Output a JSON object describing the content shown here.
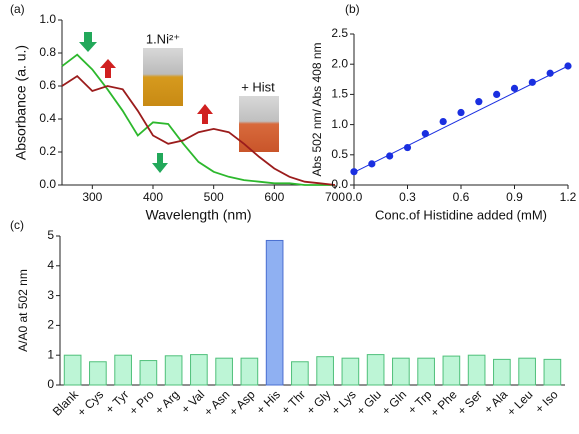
{
  "chart_data": [
    {
      "type": "line",
      "panel": "(a)",
      "xlabel": "Wavelength (nm)",
      "ylabel": "Absorbance (a. u.)",
      "annotations": [
        "1.Ni²⁺",
        "+ Hist"
      ],
      "x": [
        250,
        275,
        300,
        325,
        350,
        375,
        400,
        425,
        450,
        475,
        500,
        525,
        550,
        575,
        600,
        625,
        650,
        675,
        700
      ],
      "series": [
        {
          "color": "#2db82d",
          "values": [
            0.72,
            0.79,
            0.7,
            0.58,
            0.45,
            0.3,
            0.38,
            0.37,
            0.25,
            0.14,
            0.08,
            0.05,
            0.03,
            0.02,
            0.01,
            0.01,
            0,
            0,
            0
          ]
        },
        {
          "color": "#9b1c1c",
          "values": [
            0.6,
            0.66,
            0.57,
            0.6,
            0.58,
            0.45,
            0.3,
            0.25,
            0.27,
            0.32,
            0.34,
            0.32,
            0.25,
            0.17,
            0.1,
            0.05,
            0.02,
            0.01,
            0
          ]
        }
      ],
      "xlim": [
        250,
        700
      ],
      "xticks": [
        300,
        400,
        500,
        600,
        700
      ],
      "ylim": [
        0,
        1
      ],
      "yticks": [
        {
          "value": 0,
          "label": "0.0"
        },
        0.2,
        0.4,
        0.6,
        0.8,
        {
          "value": 1,
          "label": "1.0"
        }
      ]
    },
    {
      "type": "scatter",
      "panel": "(b)",
      "xlabel": "Conc.of Histidine added (mM)",
      "ylabel": "Abs 502 nm/ Abs 408 nm",
      "x": [
        0,
        0.1,
        0.2,
        0.3,
        0.4,
        0.5,
        0.6,
        0.7,
        0.8,
        0.9,
        1.0,
        1.1,
        1.2
      ],
      "series": [
        {
          "color": "#1a2fe0",
          "values": [
            0.22,
            0.35,
            0.48,
            0.62,
            0.85,
            1.05,
            1.2,
            1.38,
            1.5,
            1.6,
            1.7,
            1.85,
            1.97
          ]
        }
      ],
      "fit": {
        "x": [
          0,
          1.2
        ],
        "values": [
          0.21,
          1.97
        ],
        "color": "#1a2fe0"
      },
      "xlim": [
        0,
        1.2
      ],
      "xticks": [
        {
          "value": 0,
          "label": "0.0"
        },
        0.3,
        0.6,
        0.9,
        1.2
      ],
      "ylim": [
        0,
        2.5
      ],
      "yticks": [
        {
          "value": 0,
          "label": "0.0"
        },
        0.5,
        {
          "value": 1,
          "label": "1.0"
        },
        1.5,
        {
          "value": 2,
          "label": "2.0"
        },
        2.5
      ]
    },
    {
      "type": "bar",
      "panel": "(c)",
      "ylabel": "A/A0 at 502 nm",
      "categories": [
        "Blank",
        "+ Cys",
        "+ Tyr",
        "+ Pro",
        "+ Arg",
        "+ Val",
        "+ Asn",
        "+ Asp",
        "+ His",
        "+ Thr",
        "+ Gly",
        "+ Lys",
        "+ Glu",
        "+ Gln",
        "+ Trp",
        "+ Phe",
        "+ Ser",
        "+ Ala",
        "+ Leu",
        "+ Iso"
      ],
      "values": [
        1.0,
        0.78,
        1.0,
        0.82,
        0.98,
        1.02,
        0.9,
        0.9,
        4.85,
        0.78,
        0.95,
        0.9,
        1.02,
        0.9,
        0.9,
        0.97,
        1.0,
        0.86,
        0.9,
        0.86
      ],
      "colors": [
        "#bdf5d6",
        "#bdf5d6",
        "#bdf5d6",
        "#bdf5d6",
        "#bdf5d6",
        "#bdf5d6",
        "#bdf5d6",
        "#bdf5d6",
        "#8fb0f2",
        "#bdf5d6",
        "#bdf5d6",
        "#bdf5d6",
        "#bdf5d6",
        "#bdf5d6",
        "#bdf5d6",
        "#bdf5d6",
        "#bdf5d6",
        "#bdf5d6",
        "#bdf5d6",
        "#bdf5d6"
      ],
      "ylim": [
        0,
        5
      ],
      "yticks": [
        0,
        1,
        2,
        3,
        4,
        5
      ]
    }
  ]
}
